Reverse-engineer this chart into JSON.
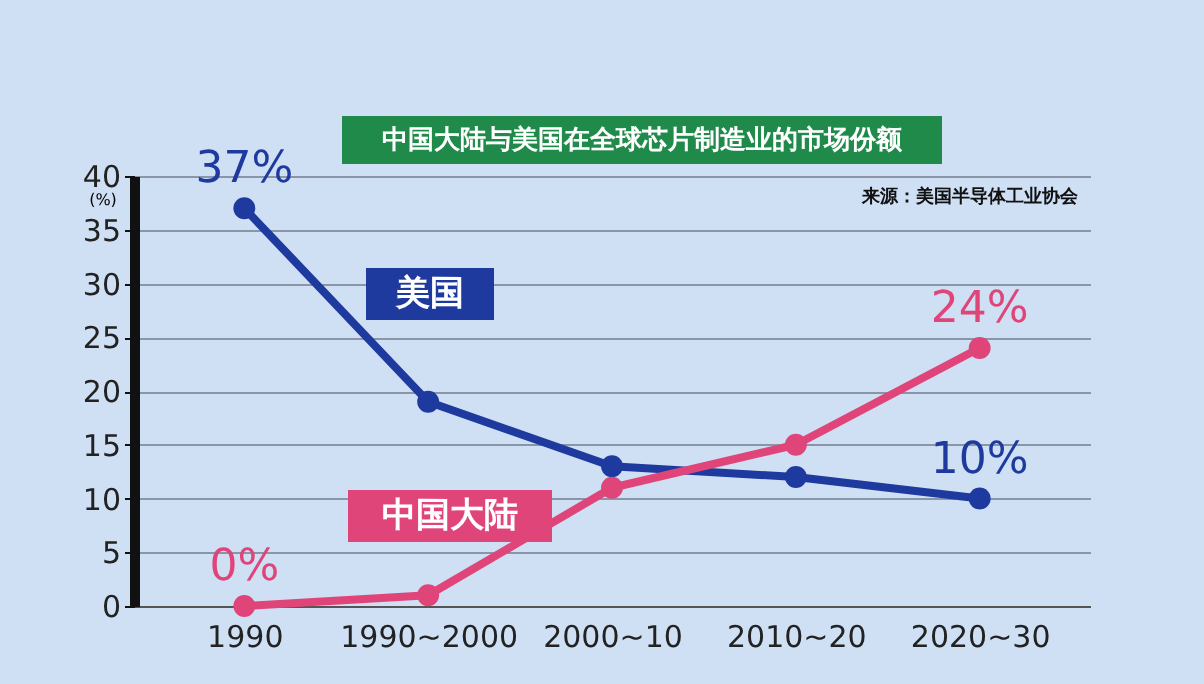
{
  "chart_data": {
    "type": "line",
    "title": "中国大陆与美国在全球芯片制造业的市场份额",
    "ylabel": "(%)",
    "categories": [
      "1990",
      "1990~2000",
      "2000~10",
      "2010~20",
      "2020~30"
    ],
    "series": [
      {
        "name": "美国",
        "color": "#1f3a9e",
        "values": [
          37,
          19,
          13,
          12,
          10
        ],
        "value_labels": [
          "37%",
          null,
          null,
          null,
          "10%"
        ]
      },
      {
        "name": "中国大陆",
        "color": "#e0457a",
        "values": [
          0,
          1,
          11,
          15,
          24
        ],
        "value_labels": [
          "0%",
          null,
          null,
          null,
          "24%"
        ]
      }
    ],
    "ylim": [
      0,
      40
    ],
    "yticks": [
      0,
      5,
      10,
      15,
      20,
      25,
      30,
      35,
      40
    ],
    "grid": "y",
    "legend": false,
    "marker": "circle",
    "line_style": "solid",
    "annotations": [
      "来源：美国半导体工业协会"
    ]
  }
}
